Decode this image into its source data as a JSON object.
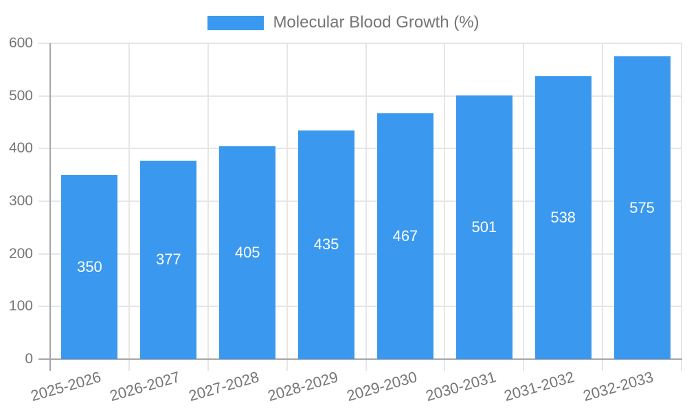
{
  "chart_data": {
    "type": "bar",
    "title": "",
    "legend_label": "Molecular Blood Growth (%)",
    "legend_position": "top",
    "categories": [
      "2025-2026",
      "2026-2027",
      "2027-2028",
      "2028-2029",
      "2029-2030",
      "2030-2031",
      "2031-2032",
      "2032-2033"
    ],
    "values": [
      350,
      377,
      405,
      435,
      467,
      501,
      538,
      575
    ],
    "value_labels_shown": true,
    "xlabel": "",
    "ylabel": "",
    "ylim": [
      0,
      600
    ],
    "ytick_step": 100,
    "yticks": [
      0,
      100,
      200,
      300,
      400,
      500,
      600
    ],
    "grid": true,
    "colors": {
      "bar": "#3A99EE",
      "grid": "#E6E6E6",
      "axis": "#A6A6A6",
      "tick_text": "#757575",
      "legend_text": "#757575",
      "value_text": "#FFFFFF",
      "background": "#FFFFFF"
    }
  }
}
